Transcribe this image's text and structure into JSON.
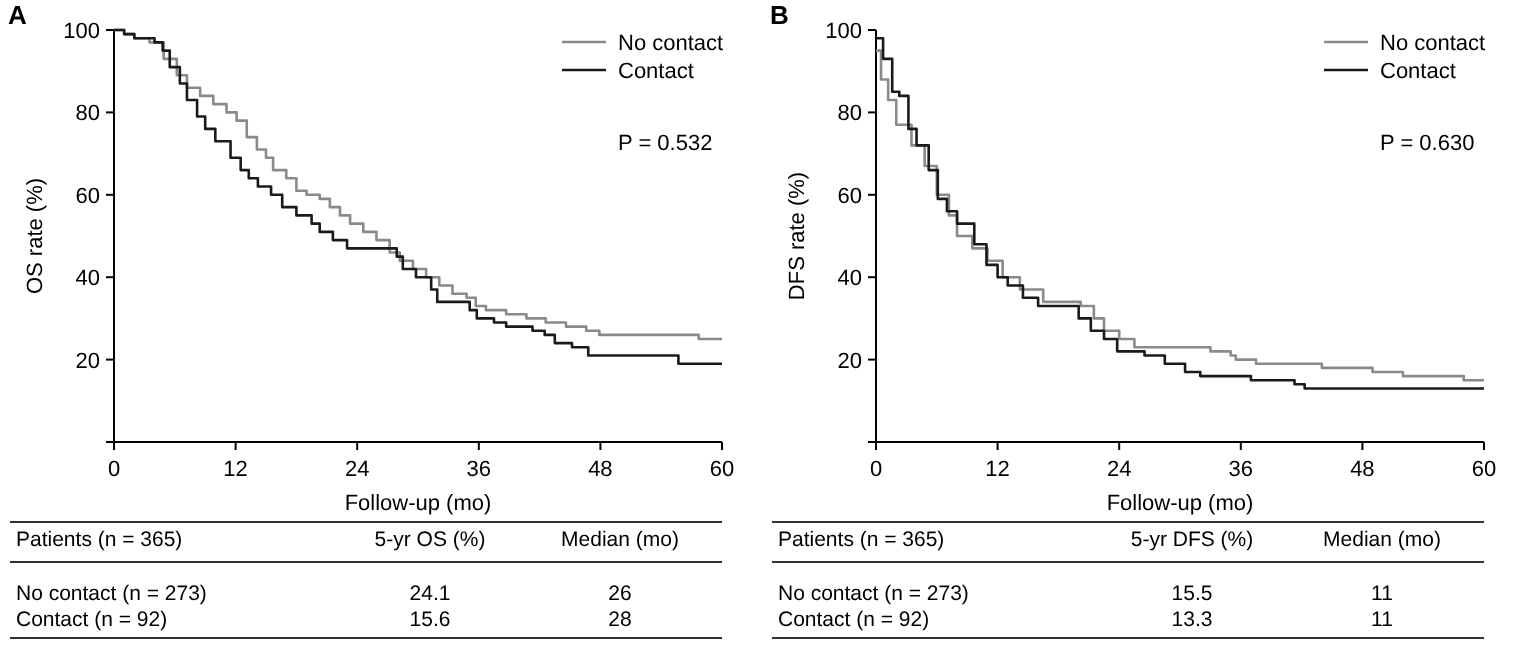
{
  "chart_data": [
    {
      "type": "step",
      "title": "A",
      "xlabel": "Follow-up (mo)",
      "ylabel": "OS rate (%)",
      "xlim": [
        0,
        60
      ],
      "ylim": [
        0,
        100
      ],
      "xticks": [
        0,
        12,
        24,
        36,
        48,
        60
      ],
      "yticks": [
        {
          "value": 0,
          "label": null
        },
        20,
        40,
        60,
        80,
        100
      ],
      "grid": false,
      "legend": "top right",
      "annotations": [
        "P = 0.532",
        "Patients (n = 365)",
        "5-yr OS (%)",
        "Median (mo)",
        "No contact (n = 273)",
        "24.1",
        "26",
        "Contact (n = 92)",
        "15.6",
        "28"
      ],
      "series": [
        {
          "name": "No contact",
          "color": "#8a8a8a",
          "x": [
            0,
            1,
            2,
            3.5,
            4.9,
            6.2,
            7.2,
            8.5,
            9.8,
            11.1,
            12.1,
            13.1,
            14.1,
            15,
            15.7,
            17,
            18,
            19,
            20.3,
            21.3,
            22.3,
            23.3,
            24.6,
            25.9,
            27.2,
            28.2,
            29.5,
            30.8,
            32.1,
            33.4,
            34.8,
            35.7,
            36.7,
            38.7,
            40.7,
            42.6,
            44.6,
            46.6,
            47.9,
            57.7,
            60
          ],
          "values": [
            100,
            99,
            98,
            97,
            93,
            89,
            86,
            84,
            82,
            80,
            78,
            74,
            71,
            69,
            66,
            64,
            61,
            60,
            59,
            57,
            55,
            53,
            51,
            49,
            46,
            44,
            42,
            40,
            38,
            36,
            35,
            33,
            32,
            31,
            30,
            29,
            28,
            27,
            26,
            25,
            25
          ]
        },
        {
          "name": "Contact",
          "color": "#1a1a1a",
          "x": [
            0,
            1,
            2,
            4,
            4.8,
            5.5,
            6.5,
            7.2,
            8.2,
            9,
            10,
            11.5,
            12.5,
            13.3,
            14.2,
            15.5,
            16.6,
            18,
            19.5,
            20.3,
            21.6,
            23,
            27.9,
            28.5,
            29.8,
            31.3,
            31.9,
            35.1,
            35.8,
            37.5,
            38.7,
            41.3,
            42.5,
            43.5,
            45.2,
            46.8,
            55.7,
            60
          ],
          "values": [
            100,
            99,
            98,
            97,
            95,
            91,
            87,
            83,
            79,
            76,
            73,
            69,
            66,
            64,
            62,
            60,
            57,
            55,
            53,
            51,
            49,
            47,
            45,
            42,
            40,
            37,
            34,
            32,
            30,
            29,
            28,
            27,
            26,
            24,
            23,
            21,
            19,
            19
          ]
        }
      ]
    },
    {
      "type": "step",
      "title": "B",
      "xlabel": "Follow-up (mo)",
      "ylabel": "DFS rate (%)",
      "xlim": [
        0,
        60
      ],
      "ylim": [
        0,
        100
      ],
      "xticks": [
        0,
        12,
        24,
        36,
        48,
        60
      ],
      "yticks": [
        {
          "value": 0,
          "label": null
        },
        20,
        40,
        60,
        80,
        100
      ],
      "grid": false,
      "legend": "top right",
      "annotations": [
        "P = 0.630",
        "Patients (n = 365)",
        "5-yr DFS (%)",
        "Median (mo)",
        "No contact (n = 273)",
        "15.5",
        "11",
        "Contact (n = 92)",
        "13.3",
        "11"
      ],
      "series": [
        {
          "name": "No contact",
          "color": "#8a8a8a",
          "x": [
            0,
            0.5,
            1.2,
            2,
            3.5,
            4.8,
            6,
            7.2,
            8,
            9.5,
            11,
            12.5,
            14.2,
            16.5,
            20.2,
            21.5,
            22.5,
            24,
            25.5,
            33,
            35,
            35.5,
            37.5,
            44,
            49,
            52,
            58,
            60
          ],
          "values": [
            95,
            88,
            83,
            77,
            72,
            67,
            60,
            55,
            50,
            47,
            44,
            40,
            37,
            34,
            33,
            30,
            27,
            25,
            23,
            22,
            21,
            20,
            19,
            18,
            17,
            16,
            15,
            15
          ]
        },
        {
          "name": "Contact",
          "color": "#1a1a1a",
          "x": [
            0,
            0.7,
            1.6,
            2.3,
            3.2,
            4,
            5.2,
            6.1,
            7,
            8,
            9.7,
            10.9,
            12,
            13,
            14.5,
            16,
            20,
            21.2,
            22.5,
            23.8,
            26.5,
            28.5,
            30.5,
            32,
            37,
            41.3,
            42.3,
            60
          ],
          "values": [
            98,
            93,
            85,
            84,
            76,
            72,
            66,
            59,
            56,
            53,
            48,
            43,
            40,
            38,
            35,
            33,
            30,
            27,
            25,
            22,
            21,
            19,
            17,
            16,
            15,
            14,
            13,
            13
          ]
        }
      ]
    }
  ]
}
